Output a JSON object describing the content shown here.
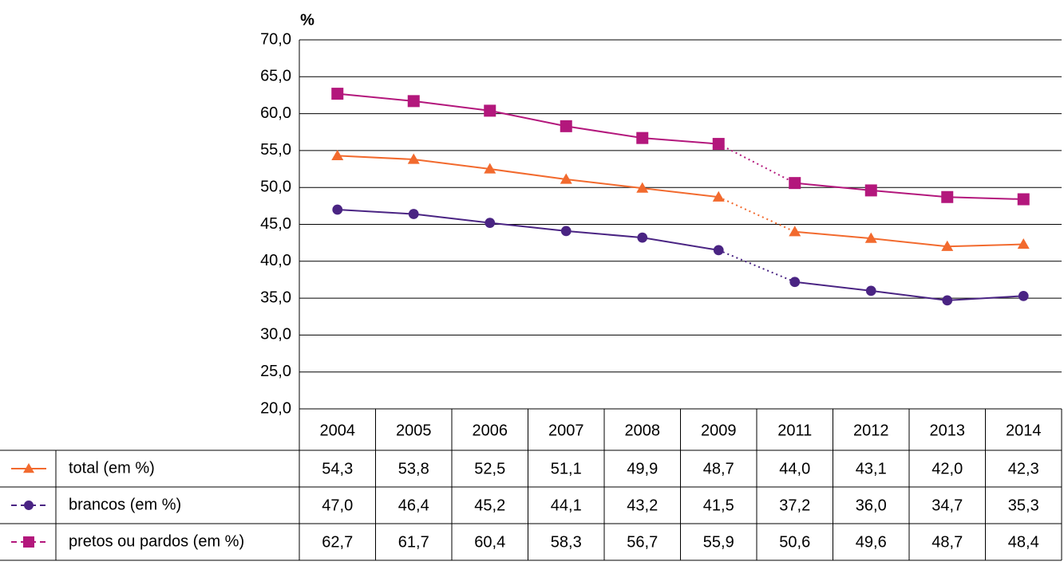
{
  "chart_data": {
    "type": "line",
    "y_label": "%",
    "categories": [
      "2004",
      "2005",
      "2006",
      "2007",
      "2008",
      "2009",
      "2011",
      "2012",
      "2013",
      "2014"
    ],
    "series": [
      {
        "name": "total (em %)",
        "color": "#f26a2e",
        "marker": "triangle",
        "values": [
          54.3,
          53.8,
          52.5,
          51.1,
          49.9,
          48.7,
          44.0,
          43.1,
          42.0,
          42.3
        ],
        "value_labels": [
          "54,3",
          "53,8",
          "52,5",
          "51,1",
          "49,9",
          "48,7",
          "44,0",
          "43,1",
          "42,0",
          "42,3"
        ]
      },
      {
        "name": "brancos (em %)",
        "color": "#4a2483",
        "marker": "circle",
        "values": [
          47.0,
          46.4,
          45.2,
          44.1,
          43.2,
          41.5,
          37.2,
          36.0,
          34.7,
          35.3
        ],
        "value_labels": [
          "47,0",
          "46,4",
          "45,2",
          "44,1",
          "43,2",
          "41,5",
          "37,2",
          "36,0",
          "34,7",
          "35,3"
        ]
      },
      {
        "name": "pretos ou pardos (em %)",
        "color": "#b3177c",
        "marker": "square",
        "values": [
          62.7,
          61.7,
          60.4,
          58.3,
          56.7,
          55.9,
          50.6,
          49.6,
          48.7,
          48.4
        ],
        "value_labels": [
          "62,7",
          "61,7",
          "60,4",
          "58,3",
          "56,7",
          "55,9",
          "50,6",
          "49,6",
          "48,7",
          "48,4"
        ]
      }
    ],
    "ylim": [
      20,
      70
    ],
    "yticks": [
      {
        "value": 20,
        "label": "20,0"
      },
      {
        "value": 25,
        "label": "25,0"
      },
      {
        "value": 30,
        "label": "30,0"
      },
      {
        "value": 35,
        "label": "35,0"
      },
      {
        "value": 40,
        "label": "40,0"
      },
      {
        "value": 45,
        "label": "45,0"
      },
      {
        "value": 50,
        "label": "50,0"
      },
      {
        "value": 55,
        "label": "55,0"
      },
      {
        "value": 60,
        "label": "60,0"
      },
      {
        "value": 65,
        "label": "65,0"
      },
      {
        "value": 70,
        "label": "70,0"
      }
    ],
    "grid": true
  }
}
